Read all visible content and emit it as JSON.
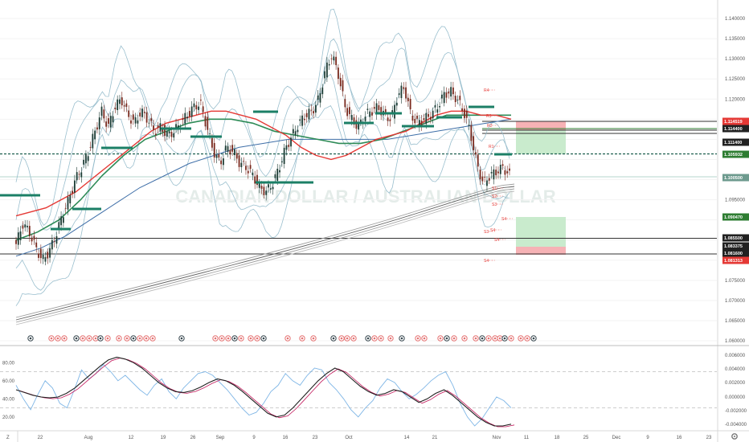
{
  "chart_data": [
    {
      "type": "line",
      "panel": "price",
      "watermark": "CANADIAN DOLLAR / AUSTRALIAN DOLLAR",
      "y_axis": {
        "ylim": [
          1.0625,
          1.1425
        ],
        "ticks": [
          "1.140000",
          "1.135000",
          "1.130000",
          "1.125000",
          "1.120000",
          "1.095000",
          "1.075000",
          "1.070000",
          "1.065000",
          "1.060000"
        ]
      },
      "price_tags": [
        {
          "value": "1.114519",
          "color": "#e53935"
        },
        {
          "value": "1.114400",
          "color": "#212121"
        },
        {
          "value": "1.111400",
          "color": "#212121"
        },
        {
          "value": "1.105932",
          "color": "#2e7d32"
        },
        {
          "value": "1.100500",
          "color": "#6d9a8e"
        },
        {
          "value": "1.090470",
          "color": "#2e7d32"
        },
        {
          "value": "1.085500",
          "color": "#212121"
        },
        {
          "value": "1.083375",
          "color": "#212121"
        },
        {
          "value": "1.081600",
          "color": "#212121"
        },
        {
          "value": "1.081313",
          "color": "#e53935"
        }
      ],
      "pivot_labels": [
        "R4",
        "R3",
        "R2",
        "R1",
        "S1",
        "S2",
        "S3",
        "S4",
        "S3",
        "S4",
        "S4",
        "S4"
      ],
      "close_series": [
        1.084,
        1.089,
        1.087,
        1.083,
        1.08,
        1.082,
        1.086,
        1.091,
        1.095,
        1.1,
        1.103,
        1.107,
        1.112,
        1.117,
        1.113,
        1.118,
        1.12,
        1.116,
        1.114,
        1.117,
        1.115,
        1.112,
        1.113,
        1.111,
        1.112,
        1.114,
        1.116,
        1.118,
        1.119,
        1.113,
        1.107,
        1.104,
        1.108,
        1.107,
        1.104,
        1.103,
        1.101,
        1.098,
        1.097,
        1.099,
        1.103,
        1.108,
        1.111,
        1.114,
        1.116,
        1.117,
        1.12,
        1.127,
        1.131,
        1.126,
        1.118,
        1.115,
        1.113,
        1.116,
        1.117,
        1.118,
        1.116,
        1.115,
        1.121,
        1.123,
        1.116,
        1.114,
        1.115,
        1.116,
        1.118,
        1.121,
        1.122,
        1.12,
        1.117,
        1.112,
        1.104,
        1.099,
        1.101,
        1.102,
        1.103,
        1.101
      ],
      "moving_averages": {
        "red_ma": [
          1.091,
          1.092,
          1.093,
          1.095,
          1.097,
          1.1,
          1.103,
          1.106,
          1.109,
          1.112,
          1.114,
          1.115,
          1.116,
          1.117,
          1.117,
          1.116,
          1.115,
          1.113,
          1.111,
          1.108,
          1.106,
          1.105,
          1.106,
          1.108,
          1.11,
          1.111,
          1.112,
          1.114,
          1.116,
          1.117,
          1.117,
          1.116,
          1.116,
          1.115
        ],
        "green_ma": [
          1.085,
          1.087,
          1.09,
          1.095,
          1.101,
          1.106,
          1.11,
          1.112,
          1.114,
          1.115,
          1.115,
          1.114,
          1.112,
          1.111,
          1.11,
          1.109,
          1.109,
          1.11,
          1.112,
          1.114,
          1.116,
          1.116,
          1.116,
          1.116
        ],
        "blue_ma": [
          1.081,
          1.083,
          1.086,
          1.09,
          1.094,
          1.098,
          1.101,
          1.104,
          1.106,
          1.108,
          1.109,
          1.11,
          1.11,
          1.11,
          1.11,
          1.11,
          1.111,
          1.112,
          1.113,
          1.114,
          1.115
        ]
      }
    },
    {
      "type": "line",
      "panel": "oscillator",
      "y_axis_left": {
        "ticks": [
          "80.00",
          "60.00",
          "40.00",
          "20.00"
        ]
      },
      "y_axis_right": {
        "ticks": [
          "0.006000",
          "0.004000",
          "0.002000",
          "0.000000",
          "-0.002000",
          "-0.004000"
        ]
      },
      "fast_line": [
        55,
        40,
        28,
        45,
        60,
        52,
        35,
        30,
        50,
        72,
        62,
        68,
        78,
        70,
        60,
        66,
        58,
        50,
        44,
        55,
        62,
        48,
        40,
        52,
        60,
        68,
        70,
        66,
        58,
        50,
        40,
        30,
        22,
        25,
        35,
        48,
        55,
        68,
        60,
        55,
        66,
        74,
        72,
        58,
        50,
        40,
        28,
        20,
        30,
        38,
        52,
        62,
        58,
        48,
        40,
        45,
        52,
        60,
        66,
        70,
        55,
        35,
        20,
        10,
        18,
        30,
        42,
        38,
        30
      ],
      "slow_line": [
        50,
        47,
        44,
        42,
        41,
        42,
        46,
        52,
        60,
        68,
        76,
        83,
        86,
        84,
        80,
        74,
        66,
        58,
        52,
        48,
        47,
        49,
        53,
        58,
        62,
        60,
        55,
        48,
        40,
        32,
        24,
        20,
        22,
        30,
        40,
        50,
        60,
        68,
        74,
        70,
        62,
        54,
        48,
        44,
        46,
        50,
        48,
        42,
        36,
        40,
        46,
        50,
        44,
        36,
        28,
        20,
        14,
        10,
        10,
        12
      ]
    }
  ],
  "x_axis": {
    "labels": [
      "22",
      "Aug",
      "12",
      "19",
      "26",
      "Sep",
      "9",
      "16",
      "23",
      "Oct",
      "14",
      "21",
      "Nov",
      "11",
      "18",
      "25",
      "Dec",
      "9",
      "16",
      "23"
    ]
  },
  "ui": {
    "corner_label": "Z",
    "settings_icon": "gear-icon"
  }
}
